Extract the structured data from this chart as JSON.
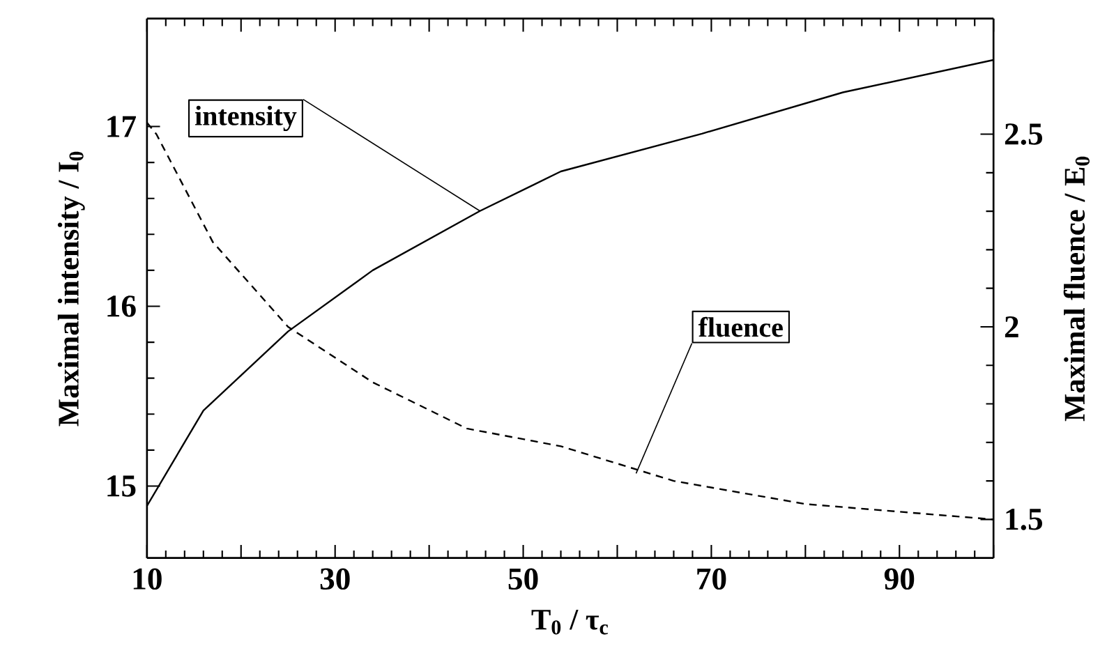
{
  "chart_data": {
    "type": "line",
    "xlabel": "T$_{0}$ / τ$_{c}$",
    "ylabel": "Maximal intensity / I$_{0}$",
    "y2label": "Maximal fluence / E$_{0}$",
    "xlim": [
      10,
      100
    ],
    "ylim": [
      14.6,
      17.6
    ],
    "y2lim": [
      1.4,
      2.8
    ],
    "xticks": [
      10,
      {
        "value": 20,
        "label": null
      },
      30,
      {
        "value": 40,
        "label": null
      },
      50,
      {
        "value": 60,
        "label": null
      },
      70,
      {
        "value": 80,
        "label": null
      },
      90,
      {
        "value": 100,
        "label": null
      }
    ],
    "yticks": [
      15,
      16,
      17
    ],
    "y2ticks": [
      1.5,
      2,
      2.5
    ],
    "series": [
      {
        "color": "#000000",
        "line_style": "solid",
        "x": [
          10,
          16,
          25,
          34,
          45.4,
          54,
          69,
          84,
          100
        ],
        "values": [
          14.89,
          15.42,
          15.86,
          16.2,
          16.53,
          16.75,
          16.96,
          17.19,
          17.37
        ]
      },
      {
        "color": "#000000",
        "line_style": "dashed",
        "axis": "y2",
        "x": [
          10,
          11,
          17,
          25,
          34,
          44,
          54,
          66,
          80,
          100
        ],
        "values": [
          2.53,
          2.5,
          2.22,
          2.0,
          1.856,
          1.736,
          1.69,
          1.6,
          1.54,
          1.5
        ]
      }
    ],
    "annotations": [
      {
        "text": "intensity",
        "x": 45.4,
        "y": 16.53
      },
      {
        "text": "fluence",
        "x": 62,
        "y": 15.07
      }
    ],
    "marker": "none"
  }
}
